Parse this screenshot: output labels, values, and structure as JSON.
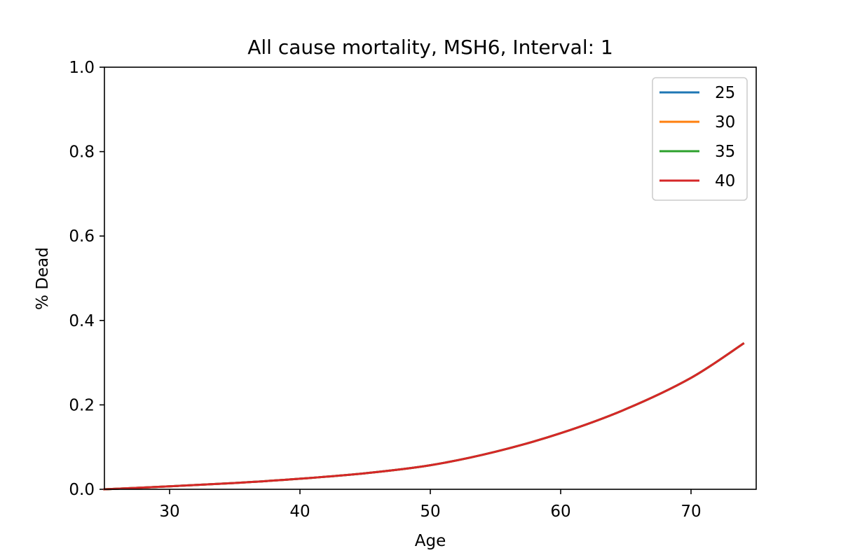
{
  "chart_data": {
    "type": "line",
    "title": "All cause mortality, MSH6, Interval: 1",
    "xlabel": "Age",
    "ylabel": "% Dead",
    "xlim": [
      25,
      75
    ],
    "ylim": [
      0.0,
      1.0
    ],
    "x_ticks": [
      30,
      40,
      50,
      60,
      70
    ],
    "x_tick_labels": [
      "30",
      "40",
      "50",
      "60",
      "70"
    ],
    "y_ticks": [
      0.0,
      0.2,
      0.4,
      0.6,
      0.8,
      1.0
    ],
    "y_tick_labels": [
      "0.0",
      "0.2",
      "0.4",
      "0.6",
      "0.8",
      "1.0"
    ],
    "grid": false,
    "legend_position": "top-right",
    "x": [
      25,
      30,
      35,
      40,
      45,
      50,
      55,
      60,
      65,
      70,
      74
    ],
    "series": [
      {
        "name": "25",
        "color": "#1f77b4",
        "values": [
          0.0,
          0.007,
          0.015,
          0.025,
          0.038,
          0.057,
          0.089,
          0.133,
          0.19,
          0.264,
          0.345
        ]
      },
      {
        "name": "30",
        "color": "#ff7f0e",
        "values": [
          0.0,
          0.007,
          0.015,
          0.025,
          0.038,
          0.057,
          0.089,
          0.133,
          0.19,
          0.264,
          0.345
        ]
      },
      {
        "name": "35",
        "color": "#2ca02c",
        "values": [
          0.0,
          0.007,
          0.015,
          0.025,
          0.038,
          0.057,
          0.089,
          0.133,
          0.19,
          0.264,
          0.345
        ]
      },
      {
        "name": "40",
        "color": "#d62728",
        "values": [
          0.0,
          0.007,
          0.015,
          0.025,
          0.038,
          0.057,
          0.089,
          0.133,
          0.19,
          0.264,
          0.345
        ]
      }
    ]
  }
}
